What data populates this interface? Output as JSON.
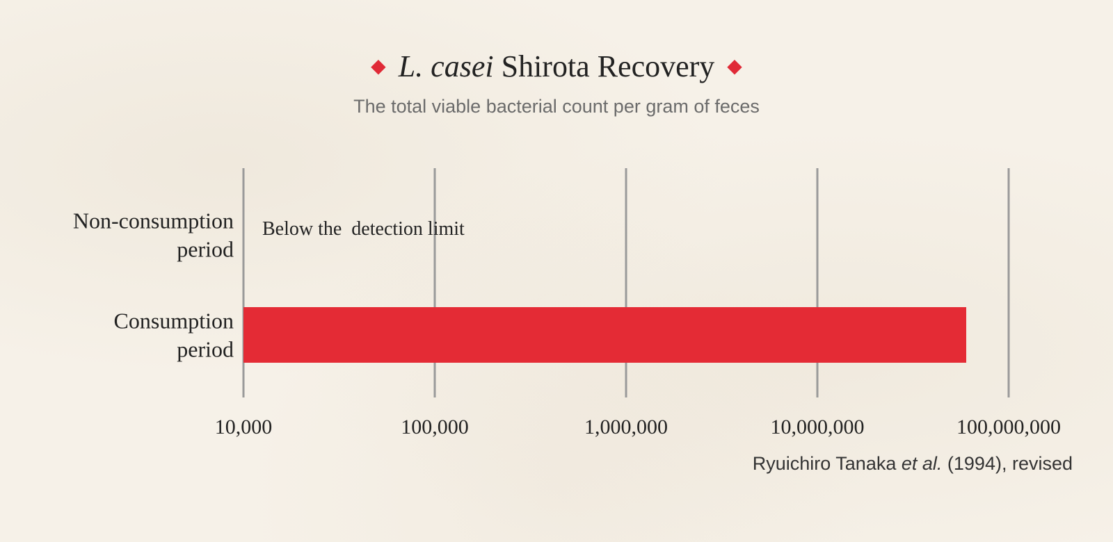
{
  "header": {
    "title_italic": "L. casei",
    "title_rest": "Shirota Recovery",
    "subtitle": "The total viable bacterial count per gram of feces"
  },
  "source": {
    "author": "Ryuichiro Tanaka ",
    "italic": "et al.",
    "rest": " (1994), revised"
  },
  "chart_data": {
    "type": "bar",
    "orientation": "horizontal",
    "x_scale": "log",
    "xlim": [
      10000,
      100000000
    ],
    "grid": true,
    "categories": [
      [
        "Non-consumption",
        "period"
      ],
      [
        "Consumption",
        "period"
      ]
    ],
    "values": [
      null,
      60000000
    ],
    "annotations": [
      "Below the  detection limit",
      ""
    ],
    "ticks": [
      {
        "value": 10000,
        "label": "10,000"
      },
      {
        "value": 100000,
        "label": "100,000"
      },
      {
        "value": 1000000,
        "label": "1,000,000"
      },
      {
        "value": 10000000,
        "label": "10,000,000"
      },
      {
        "value": 100000000,
        "label": "100,000,000"
      }
    ],
    "bar_color": "#e42b35",
    "grid_color": "#9a9a9a"
  }
}
